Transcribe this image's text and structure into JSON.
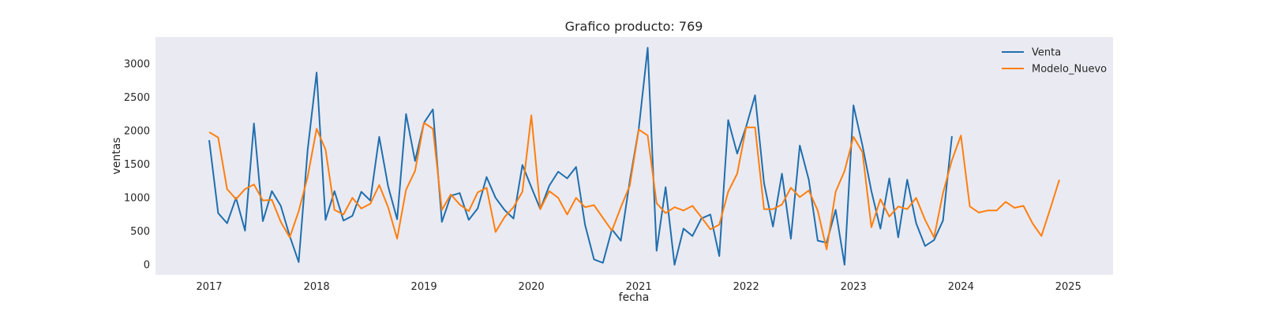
{
  "chart_data": {
    "type": "line",
    "title": "Grafico producto: 769",
    "xlabel": "fecha",
    "ylabel": "ventas",
    "x_ticks": [
      "2017",
      "2018",
      "2019",
      "2020",
      "2021",
      "2022",
      "2023",
      "2024",
      "2025"
    ],
    "y_ticks": [
      "0",
      "500",
      "1000",
      "1500",
      "2000",
      "2500",
      "3000"
    ],
    "xlim": [
      "2016-07",
      "2025-06"
    ],
    "ylim": [
      -150,
      3400
    ],
    "grid": false,
    "legend_position": "top-right",
    "background": "#eaeaf2",
    "series": [
      {
        "name": "Venta",
        "color": "#1f6fae",
        "x": [
          "2017-01",
          "2017-02",
          "2017-03",
          "2017-04",
          "2017-05",
          "2017-06",
          "2017-07",
          "2017-08",
          "2017-09",
          "2017-10",
          "2017-11",
          "2017-12",
          "2018-01",
          "2018-02",
          "2018-03",
          "2018-04",
          "2018-05",
          "2018-06",
          "2018-07",
          "2018-08",
          "2018-09",
          "2018-10",
          "2018-11",
          "2018-12",
          "2019-01",
          "2019-02",
          "2019-03",
          "2019-04",
          "2019-05",
          "2019-06",
          "2019-07",
          "2019-08",
          "2019-09",
          "2019-10",
          "2019-11",
          "2019-12",
          "2020-01",
          "2020-02",
          "2020-03",
          "2020-04",
          "2020-05",
          "2020-06",
          "2020-07",
          "2020-08",
          "2020-09",
          "2020-10",
          "2020-11",
          "2020-12",
          "2021-01",
          "2021-02",
          "2021-03",
          "2021-04",
          "2021-05",
          "2021-06",
          "2021-07",
          "2021-08",
          "2021-09",
          "2021-10",
          "2021-11",
          "2021-12",
          "2022-01",
          "2022-02",
          "2022-03",
          "2022-04",
          "2022-05",
          "2022-06",
          "2022-07",
          "2022-08",
          "2022-09",
          "2022-10",
          "2022-11",
          "2022-12",
          "2023-01",
          "2023-02",
          "2023-03",
          "2023-04",
          "2023-05",
          "2023-06",
          "2023-07",
          "2023-08",
          "2023-09",
          "2023-10",
          "2023-11",
          "2023-12"
        ],
        "y": [
          1860,
          770,
          620,
          1000,
          510,
          2110,
          650,
          1100,
          880,
          430,
          40,
          1710,
          2870,
          670,
          1100,
          660,
          730,
          1090,
          960,
          1910,
          1170,
          680,
          2250,
          1550,
          2120,
          2320,
          640,
          1030,
          1070,
          670,
          840,
          1310,
          1000,
          820,
          690,
          1490,
          1160,
          830,
          1180,
          1390,
          1290,
          1460,
          600,
          80,
          30,
          530,
          360,
          1250,
          2030,
          3240,
          210,
          1160,
          0,
          540,
          430,
          690,
          750,
          130,
          2160,
          1660,
          2060,
          2530,
          1220,
          570,
          1360,
          390,
          1780,
          1270,
          360,
          330,
          820,
          0,
          2380,
          1780,
          1100,
          540,
          1290,
          410,
          1270,
          620,
          280,
          370,
          660,
          1920
        ]
      },
      {
        "name": "Modelo_Nuevo",
        "color": "#ff7f0e",
        "x": [
          "2017-01",
          "2017-02",
          "2017-03",
          "2017-04",
          "2017-05",
          "2017-06",
          "2017-07",
          "2017-08",
          "2017-09",
          "2017-10",
          "2017-11",
          "2017-12",
          "2018-01",
          "2018-02",
          "2018-03",
          "2018-04",
          "2018-05",
          "2018-06",
          "2018-07",
          "2018-08",
          "2018-09",
          "2018-10",
          "2018-11",
          "2018-12",
          "2019-01",
          "2019-02",
          "2019-03",
          "2019-04",
          "2019-05",
          "2019-06",
          "2019-07",
          "2019-08",
          "2019-09",
          "2019-10",
          "2019-11",
          "2019-12",
          "2020-01",
          "2020-02",
          "2020-03",
          "2020-04",
          "2020-05",
          "2020-06",
          "2020-07",
          "2020-08",
          "2020-09",
          "2020-10",
          "2020-11",
          "2020-12",
          "2021-01",
          "2021-02",
          "2021-03",
          "2021-04",
          "2021-05",
          "2021-06",
          "2021-07",
          "2021-08",
          "2021-09",
          "2021-10",
          "2021-11",
          "2021-12",
          "2022-01",
          "2022-02",
          "2022-03",
          "2022-04",
          "2022-05",
          "2022-06",
          "2022-07",
          "2022-08",
          "2022-09",
          "2022-10",
          "2022-11",
          "2022-12",
          "2023-01",
          "2023-02",
          "2023-03",
          "2023-04",
          "2023-05",
          "2023-06",
          "2023-07",
          "2023-08",
          "2023-09",
          "2023-10",
          "2023-11",
          "2023-12",
          "2024-01",
          "2024-02",
          "2024-03",
          "2024-04",
          "2024-05",
          "2024-06",
          "2024-07",
          "2024-08",
          "2024-09",
          "2024-10",
          "2024-11",
          "2024-12"
        ],
        "y": [
          1980,
          1900,
          1130,
          980,
          1130,
          1200,
          960,
          970,
          640,
          410,
          800,
          1310,
          2030,
          1720,
          820,
          750,
          1000,
          840,
          910,
          1190,
          860,
          390,
          1120,
          1400,
          2120,
          2030,
          820,
          1050,
          900,
          800,
          1080,
          1150,
          490,
          710,
          860,
          1090,
          2230,
          830,
          1100,
          1000,
          750,
          1000,
          860,
          890,
          700,
          510,
          860,
          1180,
          2020,
          1930,
          920,
          770,
          860,
          810,
          880,
          710,
          530,
          600,
          1090,
          1360,
          2050,
          2050,
          830,
          830,
          900,
          1150,
          1010,
          1110,
          810,
          230,
          1090,
          1400,
          1910,
          1680,
          560,
          980,
          720,
          870,
          830,
          1000,
          670,
          410,
          1070,
          1560,
          1930,
          870,
          780,
          810,
          810,
          940,
          850,
          880,
          620,
          430,
          840,
          1270
        ]
      }
    ]
  }
}
